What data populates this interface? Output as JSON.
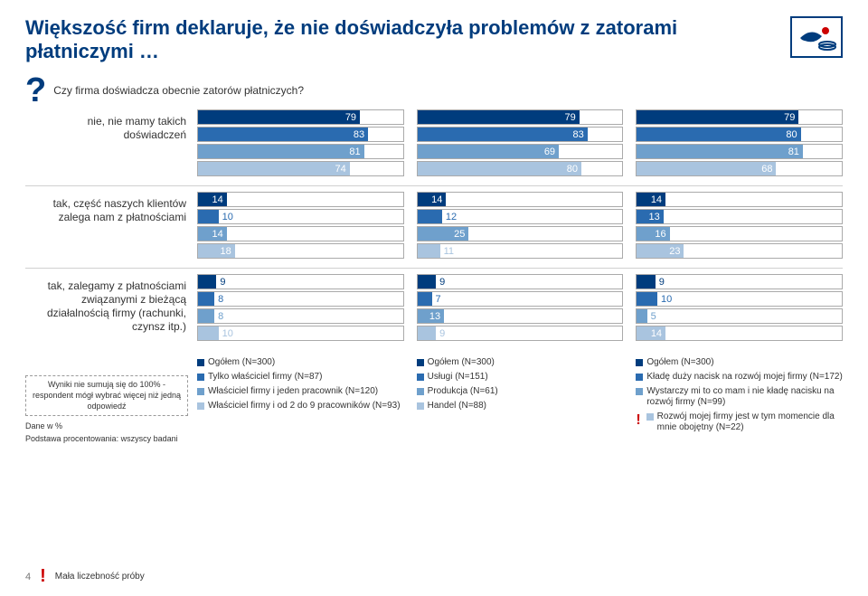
{
  "title_color": "#003c7d",
  "title": "Większość firm deklaruje, że nie doświadczyła problemów z zatorami płatniczymi …",
  "qmark_color": "#003c7d",
  "question": "Czy firma doświadcza obecnie zatorów płatniczych?",
  "max_value": 100,
  "series_colors": [
    "#003c7d",
    "#2a6bb0",
    "#6fa0cc",
    "#a9c4df"
  ],
  "rows": [
    {
      "label": "nie, nie mamy takich doświadczeń",
      "cols": [
        [
          79,
          83,
          81,
          74
        ],
        [
          79,
          83,
          69,
          80
        ],
        [
          79,
          80,
          81,
          68
        ]
      ]
    },
    {
      "label": "tak, część naszych klientów zalega nam z płatnościami",
      "cols": [
        [
          14,
          10,
          14,
          18
        ],
        [
          14,
          12,
          25,
          11
        ],
        [
          14,
          13,
          16,
          23
        ]
      ]
    },
    {
      "label": "tak, zalegamy z płatnościami związanymi z bieżącą działalnością firmy (rachunki, czynsz itp.)",
      "cols": [
        [
          9,
          8,
          8,
          10
        ],
        [
          9,
          7,
          13,
          9
        ],
        [
          9,
          10,
          5,
          14
        ]
      ]
    }
  ],
  "legend_cols": [
    {
      "items": [
        {
          "color": "#003c7d",
          "label": "Ogółem (N=300)"
        },
        {
          "color": "#2a6bb0",
          "label": "Tylko właściciel firmy (N=87)"
        },
        {
          "color": "#6fa0cc",
          "label": "Właściciel firmy i jeden pracownik (N=120)"
        },
        {
          "color": "#a9c4df",
          "label": "Właściciel firmy i od 2 do 9 pracowników (N=93)"
        }
      ]
    },
    {
      "items": [
        {
          "color": "#003c7d",
          "label": "Ogółem (N=300)"
        },
        {
          "color": "#2a6bb0",
          "label": "Usługi (N=151)"
        },
        {
          "color": "#6fa0cc",
          "label": "Produkcja (N=61)"
        },
        {
          "color": "#a9c4df",
          "label": "Handel (N=88)"
        }
      ]
    },
    {
      "exclaim": true,
      "items": [
        {
          "color": "#003c7d",
          "label": "Ogółem (N=300)"
        },
        {
          "color": "#2a6bb0",
          "label": "Kładę duży nacisk na rozwój mojej firmy (N=172)"
        },
        {
          "color": "#6fa0cc",
          "label": "Wystarczy mi to co mam i nie kładę nacisku na rozwój firmy (N=99)"
        },
        {
          "color": "#a9c4df",
          "label": "Rozwój mojej firmy jest w tym momencie dla mnie obojętny (N=22)"
        }
      ]
    }
  ],
  "note_box": "Wyniki nie sumują się do 100% - respondent mógł wybrać więcej niż jedną odpowiedź",
  "note_data": "Dane w %",
  "note_base": "Podstawa procentowania: wszyscy badani",
  "page_number": "4",
  "footer_warn": "Mała liczebność próby"
}
